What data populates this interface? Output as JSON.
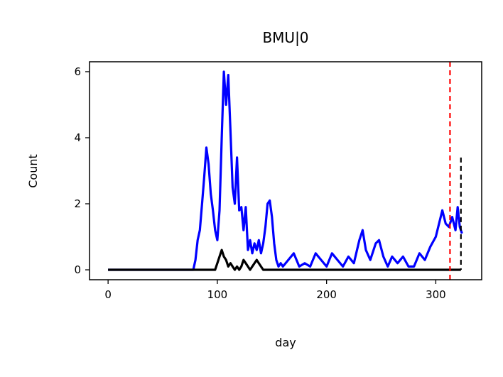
{
  "chart_data": {
    "type": "line",
    "title": "BMU|0",
    "xlabel": "day",
    "ylabel": "Count",
    "xlim": [
      -17,
      342
    ],
    "ylim": [
      -0.3,
      6.3
    ],
    "xticks": [
      0,
      100,
      200,
      300
    ],
    "yticks": [
      0,
      2,
      4,
      6
    ],
    "grid": false,
    "legend": "none",
    "vlines": [
      {
        "x": 313,
        "color": "#ff0000",
        "style": "dashed",
        "ymin": -0.3,
        "ymax": 6.3
      },
      {
        "x": 323,
        "color": "#000000",
        "style": "dashed",
        "ymin": 0,
        "ymax": 3.4
      }
    ],
    "series": [
      {
        "color": "#0000ff",
        "x": [
          0,
          78,
          80,
          82,
          84,
          86,
          88,
          90,
          92,
          94,
          96,
          98,
          100,
          102,
          104,
          106,
          108,
          110,
          112,
          114,
          116,
          118,
          120,
          122,
          124,
          126,
          128,
          130,
          132,
          134,
          136,
          138,
          140,
          142,
          144,
          146,
          148,
          150,
          152,
          154,
          156,
          158,
          160,
          165,
          170,
          175,
          180,
          185,
          190,
          195,
          200,
          205,
          210,
          215,
          220,
          225,
          230,
          233,
          236,
          240,
          245,
          248,
          252,
          256,
          260,
          265,
          270,
          275,
          280,
          285,
          290,
          295,
          300,
          303,
          306,
          309,
          312,
          315,
          318,
          320,
          322,
          324
        ],
        "values": [
          0,
          0,
          0.3,
          0.9,
          1.2,
          2.0,
          2.8,
          3.7,
          3.2,
          2.3,
          1.8,
          1.2,
          0.9,
          1.8,
          4.0,
          6.0,
          5.0,
          5.9,
          4.2,
          2.5,
          2.0,
          3.4,
          1.8,
          1.9,
          1.2,
          1.9,
          0.6,
          0.9,
          0.5,
          0.8,
          0.6,
          0.9,
          0.5,
          0.8,
          1.3,
          2.0,
          2.1,
          1.6,
          0.8,
          0.3,
          0.1,
          0.2,
          0.1,
          0.3,
          0.5,
          0.1,
          0.2,
          0.1,
          0.5,
          0.3,
          0.1,
          0.5,
          0.3,
          0.1,
          0.4,
          0.2,
          0.9,
          1.2,
          0.6,
          0.3,
          0.8,
          0.9,
          0.4,
          0.1,
          0.4,
          0.2,
          0.4,
          0.1,
          0.1,
          0.5,
          0.3,
          0.7,
          1.0,
          1.4,
          1.8,
          1.4,
          1.3,
          1.6,
          1.2,
          1.9,
          1.3,
          1.1
        ]
      },
      {
        "color": "#000000",
        "x": [
          0,
          98,
          100,
          102,
          104,
          106,
          108,
          110,
          112,
          114,
          116,
          118,
          120,
          122,
          124,
          126,
          128,
          130,
          132,
          134,
          136,
          138,
          140,
          142,
          144,
          323
        ],
        "values": [
          0,
          0,
          0.2,
          0.4,
          0.6,
          0.4,
          0.3,
          0.1,
          0.2,
          0.1,
          0.0,
          0.1,
          0.0,
          0.1,
          0.3,
          0.2,
          0.1,
          0.0,
          0.1,
          0.2,
          0.3,
          0.2,
          0.1,
          0.0,
          0.0,
          0.0
        ]
      }
    ]
  }
}
